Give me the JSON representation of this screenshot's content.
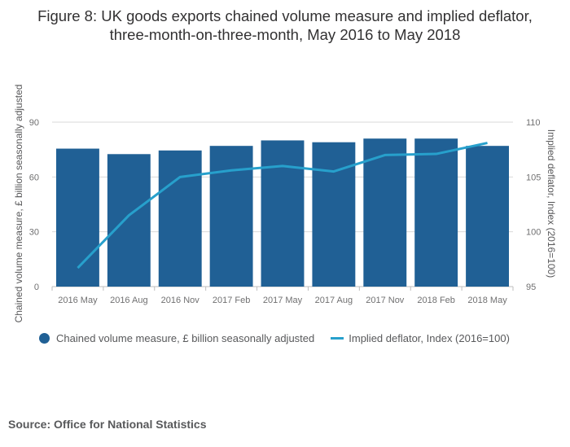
{
  "chart_data": {
    "type": "bar",
    "title_lines": [
      "Figure 8: UK goods exports chained volume measure and implied deflator,",
      "three-month-on-three-month, May 2016 to May 2018"
    ],
    "categories": [
      "2016 May",
      "2016 Aug",
      "2016 Nov",
      "2017 Feb",
      "2017 May",
      "2017 Aug",
      "2017 Nov",
      "2018 Feb",
      "2018 May"
    ],
    "series": [
      {
        "name": "Chained volume measure, £ billion seasonally adjusted",
        "type": "bar",
        "axis": "left",
        "color": "#206095",
        "values": [
          75.5,
          72.5,
          74.5,
          77.0,
          80.0,
          79.0,
          81.0,
          81.0,
          77.0
        ]
      },
      {
        "name": "Implied deflator, Index (2016=100)",
        "type": "line",
        "axis": "right",
        "color": "#27a0cc",
        "values": [
          96.7,
          101.5,
          105.0,
          105.6,
          106.0,
          105.5,
          107.0,
          107.1,
          108.1
        ]
      }
    ],
    "ylabel": "Chained volume measure, £ billion seasonally adjusted",
    "ylim": [
      0,
      90
    ],
    "yticks": [
      "0",
      "30",
      "60",
      "90"
    ],
    "y2label": "Implied deflator, Index (2016=100)",
    "y2lim": [
      95,
      110
    ],
    "y2ticks": [
      "95",
      "100",
      "105",
      "110"
    ],
    "grid": true,
    "legend": "bottom-left"
  },
  "source": "Source: Office for National Statistics"
}
